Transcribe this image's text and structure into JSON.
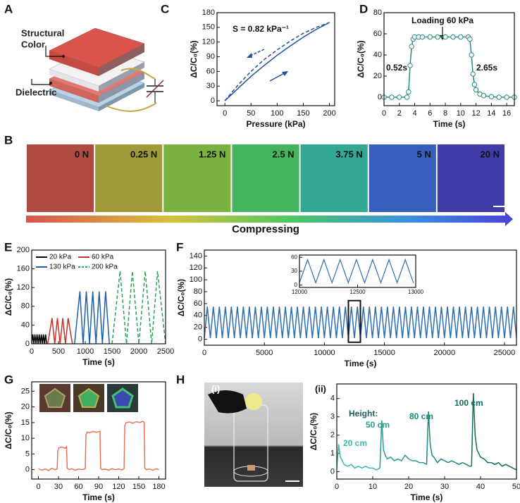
{
  "panel_labels": [
    "A",
    "B",
    "C",
    "D",
    "E",
    "F",
    "G",
    "H"
  ],
  "sub_labels": [
    "(i)",
    "(ii)"
  ],
  "diagram": {
    "labels": [
      "Structural",
      "Color",
      "Dielectric"
    ]
  },
  "photos": {
    "labels": [
      "0 N",
      "0.25 N",
      "1.25 N",
      "2.5 N",
      "3.75 N",
      "5 N",
      "20 N"
    ],
    "caption": "Compressing"
  },
  "chart_data": [
    {
      "type": "line",
      "xlabel": "Pressure (kPa)",
      "ylabel": "ΔC/C₀(%)",
      "xlim": [
        -15,
        210
      ],
      "ylim": [
        -10,
        180
      ],
      "xticks": [
        0,
        50,
        100,
        150,
        200
      ],
      "yticks": [
        0,
        30,
        60,
        90,
        120,
        150,
        180
      ],
      "annotations": [
        {
          "text": "S = 0.82 kPa⁻¹"
        }
      ],
      "series": [
        {
          "color": "#1f4e9c",
          "x": [
            0,
            25,
            50,
            75,
            100,
            125,
            150,
            175,
            200
          ],
          "values": [
            0,
            25,
            50,
            72,
            93,
            112,
            130,
            146,
            160
          ]
        },
        {
          "color": "#1f4e9c",
          "dash": true,
          "x": [
            0,
            25,
            50,
            75,
            100,
            125,
            150,
            175,
            200
          ],
          "values": [
            0,
            32,
            60,
            84,
            104,
            122,
            138,
            150,
            160
          ]
        }
      ]
    },
    {
      "type": "line",
      "xlabel": "Time (s)",
      "ylabel": "ΔC/C₀(%)",
      "xlim": [
        0,
        17
      ],
      "ylim": [
        -8,
        80
      ],
      "xticks": [
        0,
        2,
        4,
        6,
        8,
        10,
        12,
        14,
        16
      ],
      "yticks": [
        0,
        20,
        40,
        60,
        80
      ],
      "annotations": [
        {
          "text": "Loading 60 kPa"
        },
        {
          "text": "0.52s"
        },
        {
          "text": "2.65s"
        }
      ],
      "series": [
        {
          "color": "#2a8a80",
          "marker": "circle",
          "x": [
            0,
            1,
            2,
            3,
            3.2,
            3.4,
            3.6,
            3.8,
            4,
            4.5,
            5,
            6,
            7,
            8,
            9,
            10,
            11,
            11.2,
            11.4,
            11.6,
            11.8,
            12,
            12.5,
            13,
            14,
            15,
            16,
            17
          ],
          "values": [
            0,
            0,
            0,
            0,
            5,
            30,
            48,
            55,
            57,
            57,
            57,
            57,
            57,
            57,
            57,
            57,
            57,
            55,
            40,
            22,
            12,
            7,
            3,
            1.5,
            0.5,
            0,
            0,
            0
          ]
        }
      ]
    },
    {
      "type": "line",
      "xlabel": "Time (s)",
      "ylabel": "ΔC/C₀(%)",
      "legend": "upper left",
      "xlim": [
        0,
        2500
      ],
      "ylim": [
        0,
        200
      ],
      "xticks": [
        0,
        500,
        1000,
        1500,
        2000,
        2500
      ],
      "yticks": [
        0,
        40,
        80,
        120,
        160,
        200
      ],
      "series": [
        {
          "name": "20 kPa",
          "color": "#000000",
          "x": [
            0,
            20,
            40,
            60,
            80,
            100,
            120,
            140,
            160,
            180,
            200,
            220,
            240,
            260,
            280
          ],
          "values": [
            0,
            20,
            0,
            20,
            0,
            20,
            0,
            20,
            0,
            20,
            0,
            20,
            0,
            20,
            0
          ]
        },
        {
          "name": "60 kPa",
          "color": "#c8302c",
          "x": [
            300,
            380,
            430,
            480,
            530,
            580,
            630,
            680,
            760
          ],
          "values": [
            0,
            55,
            0,
            55,
            0,
            55,
            0,
            55,
            0
          ]
        },
        {
          "name": "130 kPa",
          "color": "#1f5fa8",
          "x": [
            800,
            900,
            960,
            1020,
            1080,
            1140,
            1200,
            1260,
            1320,
            1380,
            1450
          ],
          "values": [
            0,
            112,
            0,
            112,
            0,
            112,
            0,
            112,
            0,
            112,
            0
          ]
        },
        {
          "name": "200 kPa",
          "color": "#2aa05a",
          "dash": true,
          "x": [
            1500,
            1650,
            1770,
            1880,
            2000,
            2120,
            2240,
            2350,
            2500
          ],
          "values": [
            0,
            155,
            0,
            155,
            0,
            155,
            0,
            155,
            0
          ]
        }
      ]
    },
    {
      "type": "line",
      "xlabel": "Time (s)",
      "ylabel": "ΔC/C₀(%)",
      "xlim": [
        0,
        26000
      ],
      "ylim": [
        -10,
        150
      ],
      "xticks": [
        0,
        5000,
        10000,
        15000,
        20000,
        25000
      ],
      "yticks": [
        0,
        20,
        40,
        60,
        80,
        100,
        120,
        140
      ],
      "series": [
        {
          "color": "#2f6fb0",
          "x": [
            0,
            250,
            500,
            750,
            1000,
            1250,
            1500,
            1750,
            2000,
            2250,
            2500,
            2750,
            3000,
            3250,
            3500,
            3750,
            4000,
            4250,
            4500,
            4750,
            5000,
            5250,
            5500,
            5750,
            6000,
            6250,
            6500,
            6750,
            7000,
            7250,
            7500,
            7750,
            8000,
            8250,
            8500,
            8750,
            9000,
            9250,
            9500,
            9750,
            10000,
            10250,
            10500,
            10750,
            11000,
            11250,
            11500,
            11750,
            12000,
            12250,
            12500,
            12750,
            13000,
            13250,
            13500,
            13750,
            14000,
            14250,
            14500,
            14750,
            15000,
            15250,
            15500,
            15750,
            16000,
            16250,
            16500,
            16750,
            17000,
            17250,
            17500,
            17750,
            18000,
            18250,
            18500,
            18750,
            19000,
            19250,
            19500,
            19750,
            20000,
            20250,
            20500,
            20750,
            21000,
            21250,
            21500,
            21750,
            22000,
            22250,
            22500,
            22750,
            23000,
            23250,
            23500,
            23750,
            24000,
            24250,
            24500,
            24750,
            25000,
            25250,
            25500,
            25750,
            26000
          ],
          "values": [
            2,
            55,
            2,
            55,
            2,
            55,
            2,
            55,
            2,
            55,
            2,
            55,
            2,
            55,
            2,
            55,
            2,
            55,
            2,
            55,
            2,
            55,
            2,
            55,
            2,
            55,
            2,
            55,
            2,
            55,
            2,
            55,
            2,
            55,
            2,
            55,
            2,
            55,
            2,
            55,
            2,
            55,
            2,
            55,
            2,
            55,
            2,
            55,
            2,
            55,
            2,
            55,
            2,
            55,
            2,
            55,
            2,
            55,
            2,
            55,
            2,
            55,
            2,
            55,
            2,
            55,
            2,
            55,
            2,
            55,
            2,
            55,
            2,
            55,
            2,
            55,
            2,
            55,
            2,
            55,
            2,
            55,
            2,
            55,
            2,
            55,
            2,
            55,
            2,
            55,
            2,
            55,
            2,
            55,
            2,
            55,
            2,
            55,
            2,
            55,
            2,
            55,
            2,
            55,
            2
          ]
        }
      ]
    },
    {
      "type": "line",
      "xlim": [
        12000,
        13000
      ],
      "ylim": [
        -5,
        65
      ],
      "xticks": [
        12000,
        12500,
        13000
      ],
      "yticks": [
        0,
        30,
        60
      ],
      "series": [
        {
          "color": "#2f6fb0",
          "x": [
            12000,
            12070,
            12140,
            12210,
            12280,
            12350,
            12420,
            12490,
            12560,
            12630,
            12700,
            12770,
            12840,
            12910,
            12980
          ],
          "values": [
            5,
            55,
            5,
            55,
            5,
            55,
            5,
            55,
            5,
            55,
            5,
            55,
            5,
            55,
            5
          ]
        }
      ]
    },
    {
      "type": "line",
      "xlabel": "Time (s)",
      "ylabel": "ΔC/C₀(%)",
      "xlim": [
        -10,
        190
      ],
      "ylim": [
        -3,
        28
      ],
      "xticks": [
        0,
        30,
        60,
        90,
        120,
        150,
        180
      ],
      "yticks": [
        0,
        5,
        10,
        15,
        20,
        25
      ],
      "series": [
        {
          "color": "#e8735a",
          "x": [
            0,
            5,
            10,
            15,
            20,
            25,
            28,
            29,
            31,
            35,
            40,
            42,
            43,
            46,
            50,
            55,
            60,
            65,
            70,
            71,
            73,
            77,
            82,
            87,
            92,
            93,
            95,
            100,
            105,
            110,
            115,
            120,
            125,
            128,
            129,
            131,
            136,
            141,
            146,
            151,
            156,
            158,
            159,
            161,
            166,
            171,
            176,
            180
          ],
          "values": [
            0.3,
            -0.2,
            0.2,
            -0.3,
            0.4,
            0,
            0.2,
            6,
            7,
            7.2,
            6.8,
            7.3,
            0.5,
            0,
            0.3,
            -0.2,
            0.2,
            0,
            0.3,
            11,
            12,
            11.8,
            12.2,
            11.9,
            12.3,
            0.4,
            0,
            0.2,
            -0.2,
            0.3,
            0,
            0.2,
            -0.1,
            0.3,
            14,
            15,
            15.2,
            14.8,
            15.3,
            15,
            15.4,
            15.1,
            0.5,
            0,
            0.2,
            -0.2,
            0.3,
            0
          ]
        }
      ]
    },
    {
      "type": "line",
      "xlabel": "Time (s)",
      "ylabel": "ΔC/C₀(%)",
      "xlim": [
        0,
        50
      ],
      "ylim": [
        -0.4,
        4.8
      ],
      "xticks": [
        0,
        10,
        20,
        30,
        40,
        50
      ],
      "yticks": [
        0,
        1,
        2,
        3,
        4
      ],
      "annotations": [
        {
          "text": "Height:",
          "color": "#1f5f57"
        },
        {
          "text": "20 cm",
          "color": "#3cb8a8"
        },
        {
          "text": "50 cm",
          "color": "#2a9d8f"
        },
        {
          "text": "80 cm",
          "color": "#1f8a7a"
        },
        {
          "text": "100 cm",
          "color": "#146b5e"
        }
      ],
      "series": [
        {
          "color": "#3cb8a8",
          "x": [
            0,
            0.5,
            1,
            1.5,
            2,
            3,
            4,
            5,
            6,
            7,
            8,
            9,
            10,
            11,
            12
          ],
          "values": [
            0.2,
            1.5,
            0.8,
            0.6,
            0.4,
            0.3,
            0.4,
            0.2,
            0.3,
            0.2,
            0.3,
            0.2,
            0.2,
            0.1,
            0.2
          ]
        },
        {
          "color": "#2a9d8f",
          "x": [
            12,
            12.5,
            13,
            13.5,
            14,
            15,
            16,
            17,
            18,
            19,
            20,
            21,
            22,
            23,
            24,
            25
          ],
          "values": [
            0.2,
            2.8,
            1.2,
            0.9,
            0.7,
            0.8,
            0.6,
            0.7,
            0.6,
            0.9,
            0.7,
            0.6,
            0.6,
            0.5,
            0.5,
            0.4
          ]
        },
        {
          "color": "#1f8a7a",
          "x": [
            25,
            25.5,
            26,
            26.5,
            27,
            28,
            29,
            30,
            31,
            32,
            33,
            34,
            35,
            36,
            37,
            37.5
          ],
          "values": [
            0.4,
            3.3,
            1.5,
            0.9,
            0.8,
            0.5,
            0.7,
            0.6,
            0.5,
            0.6,
            0.5,
            0.4,
            0.5,
            0.4,
            0.3,
            0.3
          ]
        },
        {
          "color": "#146b5e",
          "x": [
            37.5,
            38,
            38.5,
            39,
            40,
            41,
            42,
            43,
            44,
            45,
            46,
            47,
            48,
            49,
            50
          ],
          "values": [
            0.3,
            4.3,
            2.0,
            1.2,
            0.8,
            0.7,
            0.5,
            0.5,
            0.4,
            0.5,
            0.3,
            0.4,
            0.3,
            0.2,
            0.1
          ]
        }
      ]
    }
  ]
}
